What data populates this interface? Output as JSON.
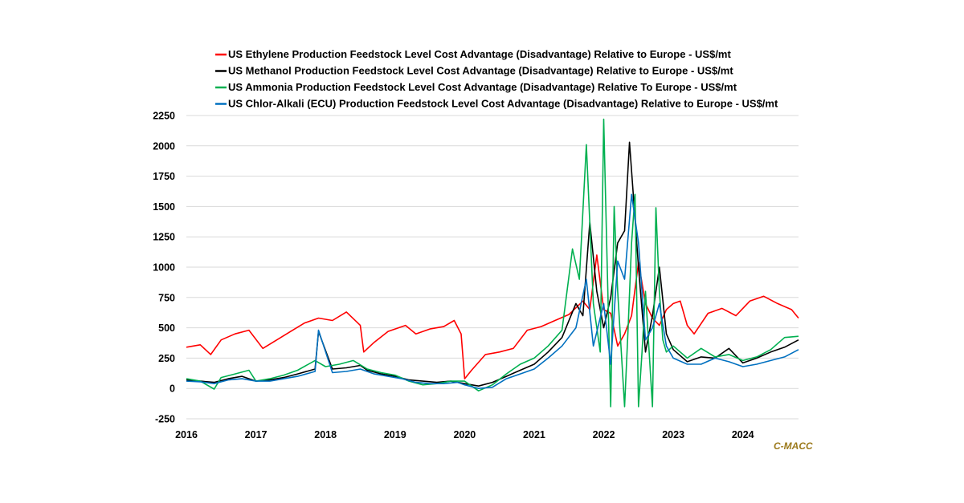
{
  "chart_data": {
    "type": "line",
    "title": "",
    "xlabel": "",
    "ylabel": "",
    "ylim": [
      -250,
      2250
    ],
    "yticks": [
      -250,
      0,
      250,
      500,
      750,
      1000,
      1250,
      1500,
      1750,
      2000,
      2250
    ],
    "xlim": [
      2016,
      2024.8
    ],
    "xtick_labels": [
      "2016",
      "2017",
      "2018",
      "2019",
      "2020",
      "2021",
      "2022",
      "2023",
      "2024"
    ],
    "grid": "horizontal",
    "legend_position": "top",
    "watermark": "C-MACC",
    "series": [
      {
        "name": "US Ethylene Production Feedstock Level Cost Advantage (Disadvantage) Relative to Europe - US$/mt",
        "color": "#ff0000",
        "x": [
          2016,
          2016.2,
          2016.35,
          2016.5,
          2016.7,
          2016.9,
          2017.1,
          2017.3,
          2017.5,
          2017.7,
          2017.9,
          2018.1,
          2018.3,
          2018.5,
          2018.55,
          2018.7,
          2018.9,
          2019.15,
          2019.3,
          2019.5,
          2019.7,
          2019.85,
          2019.95,
          2020.0,
          2020.1,
          2020.3,
          2020.5,
          2020.7,
          2020.9,
          2021.1,
          2021.3,
          2021.5,
          2021.7,
          2021.8,
          2021.9,
          2022.0,
          2022.1,
          2022.2,
          2022.3,
          2022.4,
          2022.5,
          2022.6,
          2022.7,
          2022.8,
          2022.9,
          2023.0,
          2023.1,
          2023.2,
          2023.3,
          2023.5,
          2023.7,
          2023.9,
          2024.1,
          2024.3,
          2024.5,
          2024.7,
          2024.8
        ],
        "y": [
          340,
          360,
          280,
          400,
          450,
          480,
          330,
          400,
          470,
          540,
          580,
          560,
          630,
          520,
          300,
          380,
          470,
          520,
          450,
          490,
          510,
          560,
          450,
          80,
          150,
          280,
          300,
          330,
          480,
          510,
          560,
          610,
          720,
          650,
          1100,
          650,
          620,
          350,
          450,
          600,
          1040,
          700,
          580,
          520,
          650,
          700,
          720,
          520,
          450,
          620,
          660,
          600,
          720,
          760,
          700,
          650,
          580
        ]
      },
      {
        "name": "US Methanol Production Feedstock Level Cost Advantage (Disadvantage) Relative to Europe - US$/mt",
        "color": "#000000",
        "x": [
          2016,
          2016.2,
          2016.4,
          2016.6,
          2016.8,
          2017.0,
          2017.2,
          2017.4,
          2017.6,
          2017.85,
          2017.9,
          2018.1,
          2018.3,
          2018.5,
          2018.6,
          2018.8,
          2019.0,
          2019.2,
          2019.4,
          2019.6,
          2019.8,
          2020.0,
          2020.2,
          2020.4,
          2020.6,
          2020.8,
          2021.0,
          2021.2,
          2021.4,
          2021.6,
          2021.7,
          2021.8,
          2021.9,
          2022.0,
          2022.1,
          2022.2,
          2022.3,
          2022.37,
          2022.45,
          2022.5,
          2022.6,
          2022.7,
          2022.8,
          2022.9,
          2023.0,
          2023.2,
          2023.4,
          2023.6,
          2023.8,
          2024.0,
          2024.2,
          2024.4,
          2024.6,
          2024.8
        ],
        "y": [
          70,
          60,
          50,
          80,
          100,
          60,
          70,
          90,
          120,
          160,
          470,
          160,
          170,
          190,
          150,
          120,
          100,
          70,
          60,
          50,
          60,
          40,
          20,
          50,
          100,
          150,
          200,
          300,
          420,
          700,
          600,
          1370,
          800,
          500,
          750,
          1200,
          1300,
          2030,
          1400,
          1000,
          300,
          600,
          1000,
          450,
          320,
          220,
          260,
          250,
          330,
          210,
          250,
          300,
          340,
          400
        ]
      },
      {
        "name": "US Ammonia Production Feedstock Level Cost Advantage (Disadvantage) Relative To Europe - US$/mt",
        "color": "#00b050",
        "x": [
          2016,
          2016.2,
          2016.4,
          2016.5,
          2016.7,
          2016.9,
          2017.0,
          2017.2,
          2017.4,
          2017.6,
          2017.85,
          2018.0,
          2018.2,
          2018.4,
          2018.6,
          2018.8,
          2019.0,
          2019.2,
          2019.4,
          2019.6,
          2019.8,
          2020.0,
          2020.2,
          2020.4,
          2020.6,
          2020.8,
          2021.0,
          2021.2,
          2021.4,
          2021.55,
          2021.65,
          2021.75,
          2021.85,
          2021.95,
          2022.0,
          2022.05,
          2022.1,
          2022.15,
          2022.2,
          2022.3,
          2022.35,
          2022.4,
          2022.45,
          2022.5,
          2022.55,
          2022.6,
          2022.7,
          2022.75,
          2022.8,
          2022.85,
          2022.9,
          2023.0,
          2023.2,
          2023.4,
          2023.6,
          2023.8,
          2024.0,
          2024.2,
          2024.4,
          2024.6,
          2024.8
        ],
        "y": [
          80,
          60,
          -5,
          90,
          120,
          150,
          60,
          80,
          110,
          150,
          230,
          180,
          200,
          230,
          160,
          130,
          110,
          60,
          30,
          40,
          60,
          60,
          -20,
          30,
          120,
          200,
          250,
          350,
          480,
          1150,
          900,
          2010,
          700,
          300,
          2220,
          1000,
          -150,
          1500,
          800,
          -150,
          500,
          1200,
          1600,
          -150,
          300,
          800,
          -150,
          1490,
          800,
          400,
          300,
          350,
          250,
          330,
          260,
          280,
          230,
          260,
          320,
          420,
          430
        ]
      },
      {
        "name": "US Chlor-Alkali (ECU) Production Feedstock Level Cost Advantage (Disadvantage) Relative to Europe - US$/mt",
        "color": "#0070c0",
        "x": [
          2016,
          2016.2,
          2016.4,
          2016.6,
          2016.8,
          2017.0,
          2017.2,
          2017.4,
          2017.6,
          2017.85,
          2017.9,
          2018.1,
          2018.3,
          2018.5,
          2018.7,
          2018.9,
          2019.1,
          2019.3,
          2019.5,
          2019.7,
          2019.9,
          2020.0,
          2020.2,
          2020.4,
          2020.6,
          2020.8,
          2021.0,
          2021.2,
          2021.4,
          2021.6,
          2021.75,
          2021.85,
          2022.0,
          2022.1,
          2022.2,
          2022.3,
          2022.4,
          2022.5,
          2022.6,
          2022.7,
          2022.8,
          2022.9,
          2023.0,
          2023.2,
          2023.4,
          2023.6,
          2023.8,
          2024.0,
          2024.2,
          2024.4,
          2024.6,
          2024.8
        ],
        "y": [
          60,
          55,
          40,
          70,
          80,
          60,
          60,
          80,
          100,
          140,
          480,
          130,
          140,
          160,
          120,
          100,
          80,
          50,
          40,
          40,
          50,
          30,
          0,
          10,
          80,
          120,
          160,
          250,
          350,
          500,
          900,
          350,
          700,
          200,
          1050,
          900,
          1600,
          1200,
          400,
          500,
          700,
          350,
          250,
          200,
          200,
          250,
          220,
          180,
          200,
          230,
          260,
          320
        ]
      }
    ]
  }
}
